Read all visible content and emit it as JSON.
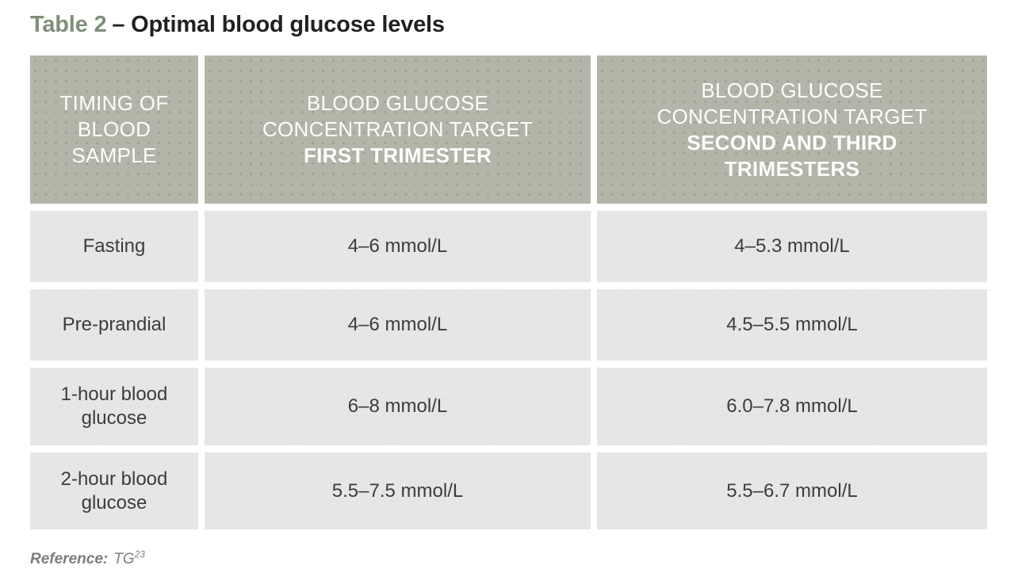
{
  "title": {
    "highlight": "Table 2",
    "rest": "– Optimal blood glucose levels"
  },
  "table": {
    "header": {
      "timing": {
        "lines": [
          "TIMING OF",
          "BLOOD",
          "SAMPLE"
        ]
      },
      "first_trimester": {
        "normal_lines": [
          "BLOOD GLUCOSE",
          "CONCENTRATION TARGET"
        ],
        "bold_lines": [
          "FIRST TRIMESTER"
        ]
      },
      "second_third_trimesters": {
        "normal_lines": [
          "BLOOD GLUCOSE",
          "CONCENTRATION TARGET"
        ],
        "bold_lines": [
          "SECOND AND THIRD",
          "TRIMESTERS"
        ]
      }
    },
    "rows": [
      {
        "timing": "Fasting",
        "first_trimester": "4–6 mmol/L",
        "second_third_trimesters": "4–5.3 mmol/L"
      },
      {
        "timing": "Pre-prandial",
        "first_trimester": "4–6 mmol/L",
        "second_third_trimesters": "4.5–5.5 mmol/L"
      },
      {
        "timing": "1-hour blood glucose",
        "first_trimester": "6–8 mmol/L",
        "second_third_trimesters": "6.0–7.8 mmol/L"
      },
      {
        "timing": "2-hour blood glucose",
        "first_trimester": "5.5–7.5 mmol/L",
        "second_third_trimesters": "5.5–6.7 mmol/L"
      }
    ]
  },
  "footer": {
    "label": "Reference:",
    "source": "TG",
    "superscript": "23"
  },
  "colors": {
    "header_bg": "#b2b6a9",
    "row_bg": "#e7e6e4",
    "title_accent": "#7d9078",
    "title_text": "#231f20",
    "header_text": "#fdfdfc",
    "body_text": "#3c3c3c",
    "reference_text": "#7d7d7d",
    "page_bg": "#ffffff"
  }
}
